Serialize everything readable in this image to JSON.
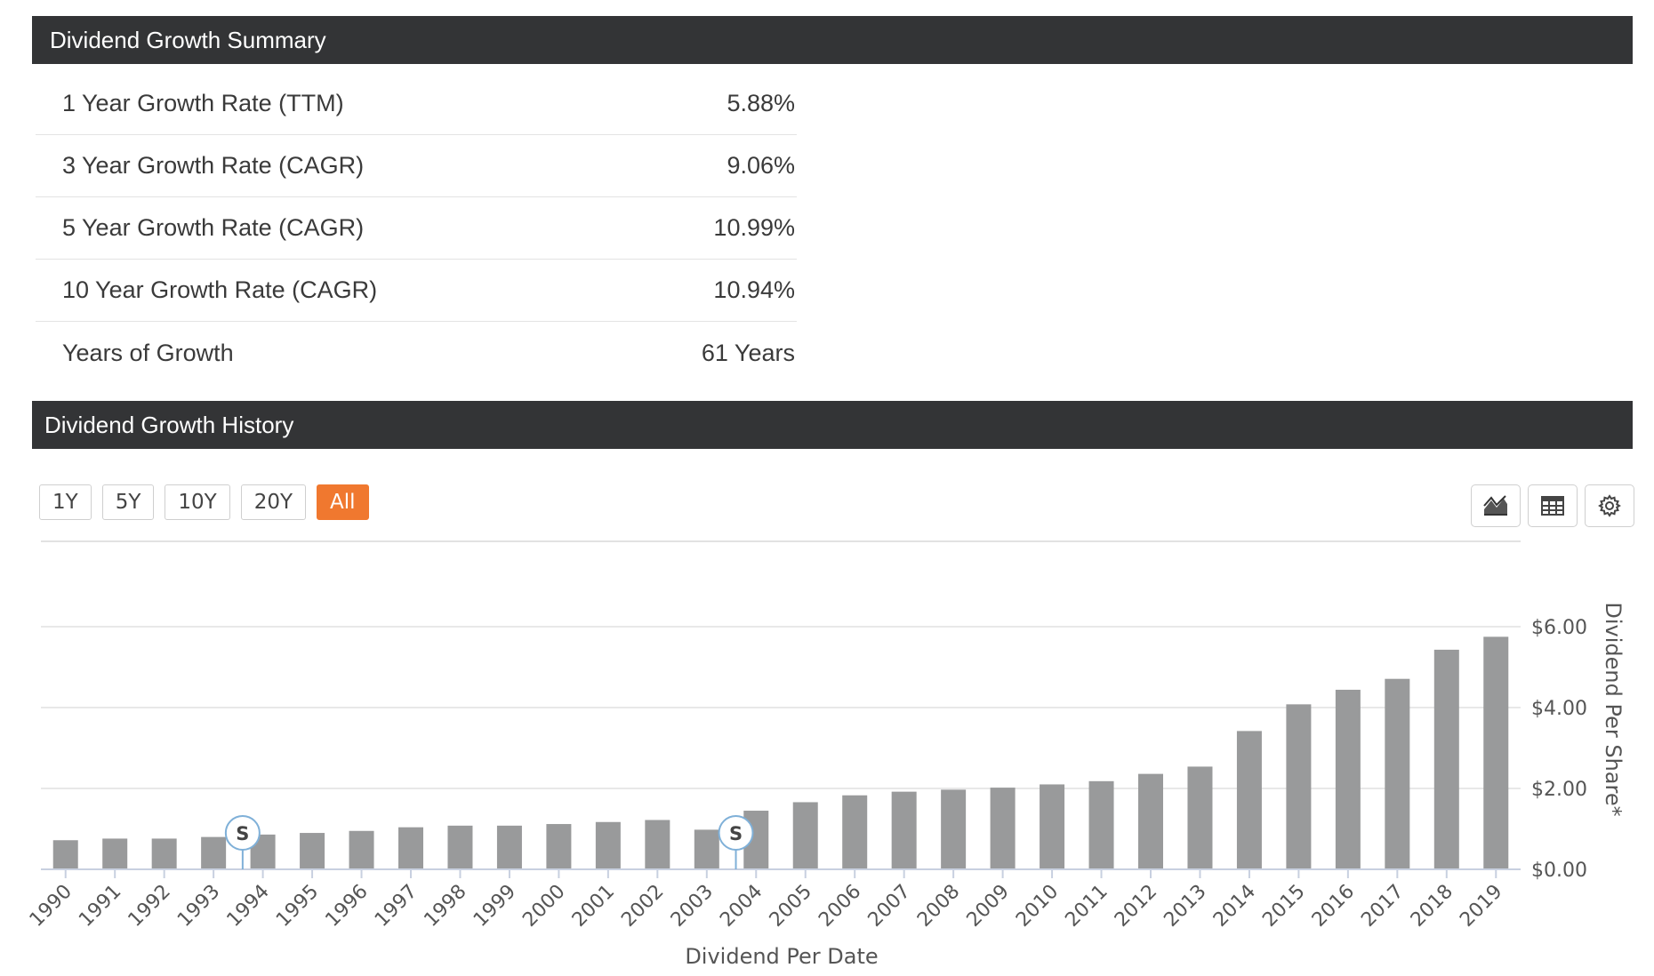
{
  "summary": {
    "title": "Dividend Growth Summary",
    "rows": [
      {
        "label": "1 Year Growth Rate (TTM)",
        "value": "5.88%"
      },
      {
        "label": "3 Year Growth Rate (CAGR)",
        "value": "9.06%"
      },
      {
        "label": "5 Year Growth Rate (CAGR)",
        "value": "10.99%"
      },
      {
        "label": "10 Year Growth Rate (CAGR)",
        "value": "10.94%"
      },
      {
        "label": "Years of Growth",
        "value": "61 Years"
      }
    ]
  },
  "history": {
    "title": "Dividend Growth History",
    "ranges": [
      {
        "label": "1Y",
        "active": false
      },
      {
        "label": "5Y",
        "active": false
      },
      {
        "label": "10Y",
        "active": false
      },
      {
        "label": "20Y",
        "active": false
      },
      {
        "label": "All",
        "active": true
      }
    ],
    "tools": [
      {
        "icon": "area-chart-icon"
      },
      {
        "icon": "table-icon"
      },
      {
        "icon": "gear-icon"
      }
    ]
  },
  "colors": {
    "header_bg": "#333436",
    "accent": "#f0782f",
    "bar": "#999a9b",
    "grid": "#e0e0e0",
    "marker": "#7fb0d8"
  },
  "chart_data": {
    "type": "bar",
    "categories": [
      "1990",
      "1991",
      "1992",
      "1993",
      "1994",
      "1995",
      "1996",
      "1997",
      "1998",
      "1999",
      "2000",
      "2001",
      "2002",
      "2003",
      "2004",
      "2005",
      "2006",
      "2007",
      "2008",
      "2009",
      "2010",
      "2011",
      "2012",
      "2013",
      "2014",
      "2015",
      "2016",
      "2017",
      "2018",
      "2019"
    ],
    "values": [
      0.72,
      0.76,
      0.76,
      0.8,
      0.86,
      0.9,
      0.95,
      1.04,
      1.08,
      1.08,
      1.12,
      1.17,
      1.22,
      0.98,
      1.45,
      1.66,
      1.83,
      1.92,
      1.97,
      2.02,
      2.1,
      2.18,
      2.36,
      2.54,
      3.42,
      4.08,
      4.44,
      4.71,
      5.43,
      5.75
    ],
    "xlabel": "Dividend Per Date",
    "ylabel": "Dividend Per Share*",
    "y_ticks": [
      "$0.00",
      "$2.00",
      "$4.00",
      "$6.00"
    ],
    "ylim": [
      0,
      6
    ],
    "y_axis_side": "right",
    "markers": [
      {
        "category": "1994",
        "label": "S"
      },
      {
        "category": "2004",
        "label": "S"
      }
    ],
    "grid": true
  }
}
